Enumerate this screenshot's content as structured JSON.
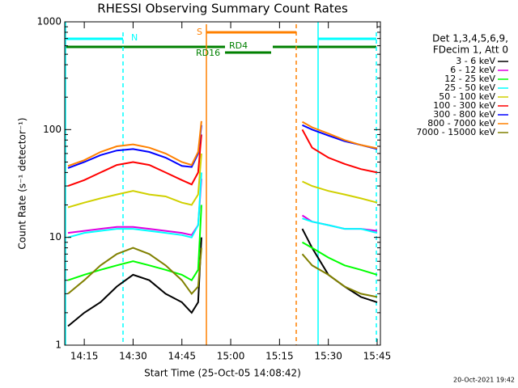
{
  "chart_data": {
    "type": "line",
    "title": "RHESSI Observing Summary Count Rates",
    "x_label": "Start Time (25-Oct-05 14:08:42)",
    "y_label": "Count Rate (s⁻¹ detector⁻¹)",
    "legend_header": [
      "Det 1,3,4,5,6,9,",
      "FDecim 1, Att 0"
    ],
    "footer": "20-Oct-2021 19:42",
    "annotations": [
      "N",
      "S",
      "RD4",
      "RD16"
    ],
    "log_y": true,
    "legend_position": "right",
    "xlim": [
      "14:09",
      "15:46"
    ],
    "xticks": [
      "14:15",
      "14:30",
      "14:45",
      "15:00",
      "15:15",
      "15:30",
      "15:45"
    ],
    "ylim": [
      1,
      1000
    ],
    "yticks": [
      1,
      10,
      100,
      1000
    ],
    "x": [
      "14:10",
      "14:15",
      "14:20",
      "14:25",
      "14:30",
      "14:35",
      "14:40",
      "14:45",
      "14:48",
      "14:50",
      "14:51",
      "15:00",
      "15:22",
      "15:25",
      "15:30",
      "15:35",
      "15:40",
      "15:45"
    ],
    "series": [
      {
        "name": "3 - 6 keV",
        "color": "#000000",
        "values": [
          1.5,
          2,
          2.5,
          3.5,
          4.5,
          4,
          3,
          2.5,
          2,
          2.5,
          10,
          null,
          12,
          8,
          4.5,
          3.5,
          2.8,
          2.5
        ]
      },
      {
        "name": "6 - 12 keV",
        "color": "#e000e0",
        "values": [
          11,
          11.5,
          12,
          12.5,
          12.5,
          12,
          11.5,
          11,
          10.5,
          13,
          35,
          null,
          16,
          14,
          13,
          12,
          12,
          11.5
        ]
      },
      {
        "name": "12 - 25 keV",
        "color": "#00ff00",
        "values": [
          4,
          4.5,
          5,
          5.5,
          6,
          5.5,
          5,
          4.5,
          4,
          5,
          20,
          null,
          9,
          8,
          6.5,
          5.5,
          5,
          4.5
        ]
      },
      {
        "name": "25 - 50 keV",
        "color": "#00ffff",
        "values": [
          10,
          11,
          11.5,
          12,
          12,
          11.5,
          11,
          10.5,
          10,
          13,
          40,
          null,
          15,
          14,
          13,
          12,
          12,
          11
        ]
      },
      {
        "name": "50 - 100 keV",
        "color": "#d0d000",
        "values": [
          19,
          21,
          23,
          25,
          27,
          25,
          24,
          21,
          20,
          25,
          60,
          null,
          33,
          30,
          27,
          25,
          23,
          21
        ]
      },
      {
        "name": "100 - 300 keV",
        "color": "#ff0000",
        "values": [
          30,
          34,
          40,
          47,
          50,
          47,
          40,
          34,
          31,
          40,
          90,
          null,
          100,
          68,
          55,
          48,
          43,
          40
        ]
      },
      {
        "name": "300 - 800 keV",
        "color": "#0000ff",
        "values": [
          44,
          50,
          58,
          64,
          66,
          62,
          55,
          46,
          45,
          60,
          110,
          null,
          110,
          100,
          88,
          78,
          72,
          66
        ]
      },
      {
        "name": "800 - 7000 keV",
        "color": "#ff8000",
        "values": [
          46,
          52,
          62,
          70,
          73,
          68,
          60,
          50,
          47,
          62,
          120,
          null,
          118,
          105,
          92,
          80,
          72,
          67
        ]
      },
      {
        "name": "7000 - 15000 keV",
        "color": "#808000",
        "values": [
          3,
          4,
          5.5,
          7,
          8,
          7,
          5.5,
          4,
          3,
          3.5,
          8,
          null,
          7,
          5.5,
          4.5,
          3.5,
          3,
          2.8
        ]
      }
    ]
  }
}
